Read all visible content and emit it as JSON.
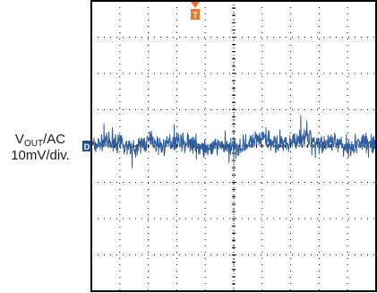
{
  "channel_label": {
    "prefix": "V",
    "subscript": "OUT",
    "suffix": "/AC",
    "scale": "10mV/div."
  },
  "channel_marker": "D",
  "trigger_marker": "T",
  "colors": {
    "trace": "#2e5e9e",
    "channel_marker": "#1f4e8c",
    "trigger_marker": "#e8792b",
    "grid": "#000000",
    "frame": "#000000"
  },
  "chart_data": {
    "type": "line",
    "title": "",
    "xlabel": "",
    "ylabel": "VOUT/AC 10mV/div.",
    "grid": true,
    "divisions": {
      "x": 10,
      "y": 8
    },
    "ylim": [
      -4,
      4
    ],
    "xlim": [
      0,
      10
    ],
    "series": [
      {
        "description_free": true,
        "x": [
          0,
          0.5,
          1,
          1.5,
          2,
          2.5,
          3,
          3.5,
          4,
          4.5,
          5,
          5.5,
          6,
          6.5,
          7,
          7.5,
          8,
          8.5,
          9,
          9.5,
          10
        ],
        "values": [
          0.0,
          0.12,
          0.08,
          -0.05,
          0.1,
          0.0,
          0.15,
          0.05,
          -0.1,
          0.05,
          -0.08,
          0.1,
          0.2,
          0.05,
          0.1,
          0.25,
          0.05,
          0.1,
          -0.05,
          0.1,
          0.05
        ]
      }
    ]
  }
}
